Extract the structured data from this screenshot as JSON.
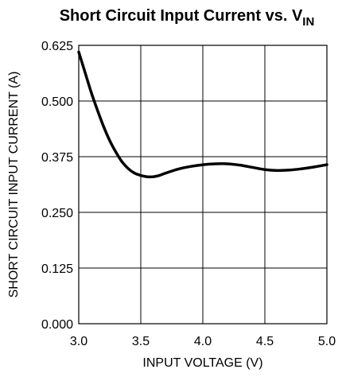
{
  "chart_data": {
    "type": "line",
    "title": {
      "main": "Short Circuit Input Current vs. V",
      "subscript": "IN"
    },
    "xlabel": "INPUT VOLTAGE (V)",
    "ylabel": "SHORT CIRCUIT INPUT CURRENT (A)",
    "xlim": [
      3.0,
      5.0
    ],
    "ylim": [
      0.0,
      0.625
    ],
    "x_ticks": [
      3.0,
      3.5,
      4.0,
      4.5,
      5.0
    ],
    "x_tick_labels": [
      "3.0",
      "3.5",
      "4.0",
      "4.5",
      "5.0"
    ],
    "y_ticks": [
      0.0,
      0.125,
      0.25,
      0.375,
      0.5,
      0.625
    ],
    "y_tick_labels": [
      "0.000",
      "0.125",
      "0.250",
      "0.375",
      "0.500",
      "0.625"
    ],
    "grid": true,
    "series": [
      {
        "color": "#000000",
        "x": [
          3.0,
          3.05,
          3.1,
          3.15,
          3.2,
          3.25,
          3.3,
          3.35,
          3.4,
          3.45,
          3.5,
          3.55,
          3.6,
          3.65,
          3.7,
          3.8,
          3.9,
          4.0,
          4.1,
          4.2,
          4.3,
          4.4,
          4.5,
          4.6,
          4.7,
          4.8,
          4.9,
          5.0
        ],
        "y": [
          0.61,
          0.565,
          0.52,
          0.48,
          0.443,
          0.411,
          0.385,
          0.363,
          0.348,
          0.338,
          0.333,
          0.33,
          0.33,
          0.333,
          0.338,
          0.347,
          0.353,
          0.357,
          0.359,
          0.359,
          0.356,
          0.351,
          0.346,
          0.344,
          0.345,
          0.348,
          0.352,
          0.357
        ]
      }
    ]
  }
}
